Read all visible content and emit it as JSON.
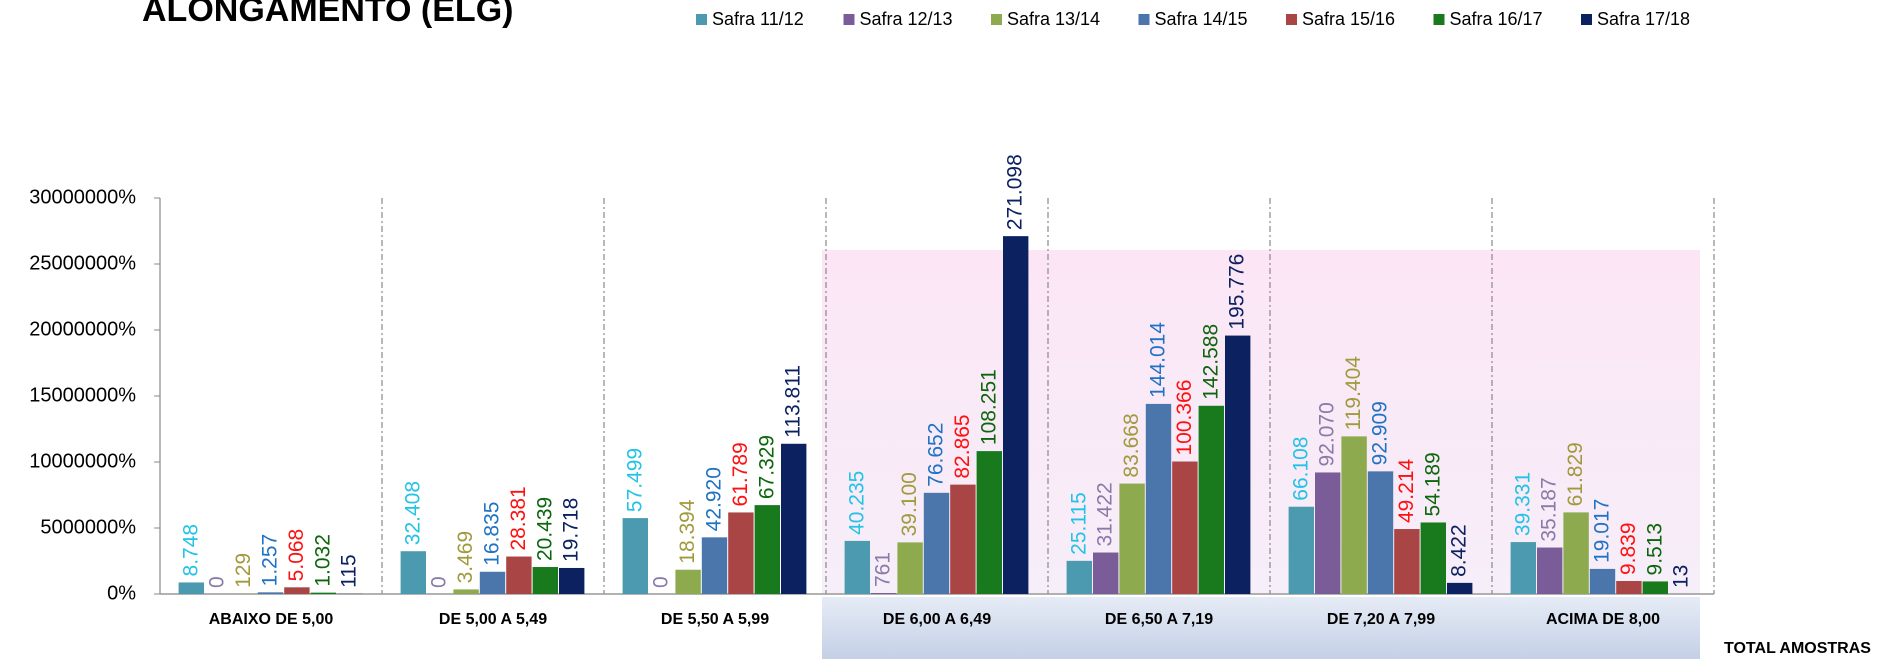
{
  "chart_data": {
    "type": "bar",
    "title": "ALONGAMENTO (ELG)",
    "footer_label": "TOTAL AMOSTRAS",
    "categories": [
      "ABAIXO DE 5,00",
      "DE 5,00 A 5,49",
      "DE 5,50 A 5,99",
      "DE 6,00 A 6,49",
      "DE 6,50 A 7,19",
      "DE 7,20 A 7,99",
      "ACIMA DE 8,00"
    ],
    "ylim": [
      0,
      300000
    ],
    "yticks": [
      {
        "value": 0,
        "label": "0%"
      },
      {
        "value": 50000,
        "label": "5000000%"
      },
      {
        "value": 100000,
        "label": "10000000%"
      },
      {
        "value": 150000,
        "label": "15000000%"
      },
      {
        "value": 200000,
        "label": "20000000%"
      },
      {
        "value": 250000,
        "label": "25000000%"
      },
      {
        "value": 300000,
        "label": "30000000%"
      }
    ],
    "legend": "top",
    "series": [
      {
        "name": "Safra 11/12",
        "color": "#4b9aaf",
        "label_color": "#22c3e6",
        "values": [
          8748,
          32408,
          57499,
          40235,
          25115,
          66108,
          39331
        ],
        "value_labels": [
          "8.748",
          "32.408",
          "57.499",
          "40.235",
          "25.115",
          "66.108",
          "39.331"
        ]
      },
      {
        "name": "Safra 12/13",
        "color": "#7a5c98",
        "label_color": "#8a7aa8",
        "values": [
          0,
          0,
          0,
          761,
          31422,
          92070,
          35187
        ],
        "value_labels": [
          "0",
          "0",
          "0",
          "761",
          "31.422",
          "92.070",
          "35.187"
        ]
      },
      {
        "name": "Safra 13/14",
        "color": "#8eaa4e",
        "label_color": "#a09a3c",
        "values": [
          129,
          3469,
          18394,
          39100,
          83668,
          119404,
          61829
        ],
        "value_labels": [
          "129",
          "3.469",
          "18.394",
          "39.100",
          "83.668",
          "119.404",
          "61.829"
        ]
      },
      {
        "name": "Safra 14/15",
        "color": "#4a76ab",
        "label_color": "#1f72c4",
        "values": [
          1257,
          16835,
          42920,
          76652,
          144014,
          92909,
          19017
        ],
        "value_labels": [
          "1.257",
          "16.835",
          "42.920",
          "76.652",
          "144.014",
          "92.909",
          "19.017"
        ]
      },
      {
        "name": "Safra 15/16",
        "color": "#aa4545",
        "label_color": "#ff1010",
        "values": [
          5068,
          28381,
          61789,
          82865,
          100366,
          49214,
          9839
        ],
        "value_labels": [
          "5.068",
          "28.381",
          "61.789",
          "82.865",
          "100.366",
          "49.214",
          "9.839"
        ]
      },
      {
        "name": "Safra 16/17",
        "color": "#187a1c",
        "label_color": "#0c660c",
        "values": [
          1032,
          20439,
          67329,
          108251,
          142588,
          54189,
          9513
        ],
        "value_labels": [
          "1.032",
          "20.439",
          "67.329",
          "108.251",
          "142.588",
          "54.189",
          "9.513"
        ]
      },
      {
        "name": "Safra 17/18",
        "color": "#0b2160",
        "label_color": "#0b2160",
        "values": [
          115,
          19718,
          113811,
          271098,
          195776,
          8422,
          13
        ],
        "value_labels": [
          "115",
          "19.718",
          "113.811",
          "271.098",
          "195.776",
          "8.422",
          "13"
        ]
      }
    ]
  }
}
